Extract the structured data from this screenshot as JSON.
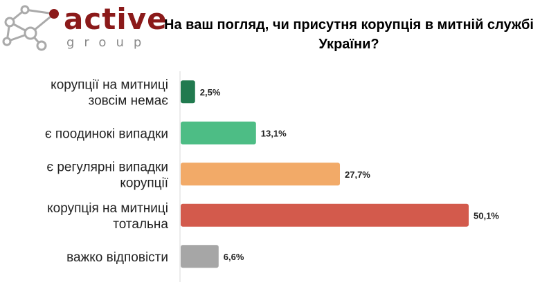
{
  "logo": {
    "word": "active",
    "sub": "group",
    "brand_color": "#8b1a1a",
    "sub_color": "#8a8a8a",
    "network_color": "#aaaaaa"
  },
  "chart_data": {
    "type": "bar",
    "orientation": "horizontal",
    "title": "На ваш погляд, чи присутня корупція в митній службі України?",
    "categories": [
      [
        "корупції на митниці",
        "зовсім немає"
      ],
      [
        "є поодинокі випадки"
      ],
      [
        "є регулярні випадки",
        "корупції"
      ],
      [
        "корупція на митниці",
        "тотальна"
      ],
      [
        "важко відповісти"
      ]
    ],
    "values": [
      2.5,
      13.1,
      27.7,
      50.1,
      6.6
    ],
    "value_labels": [
      "2,5%",
      "13,1%",
      "27,7%",
      "50,1%",
      "6,6%"
    ],
    "colors": [
      "#217a4f",
      "#4dbd85",
      "#f2aa68",
      "#d35a4c",
      "#a6a6a6"
    ],
    "unit": "%",
    "xlim": [
      0,
      50.1
    ],
    "grid": false,
    "legend": "none"
  }
}
